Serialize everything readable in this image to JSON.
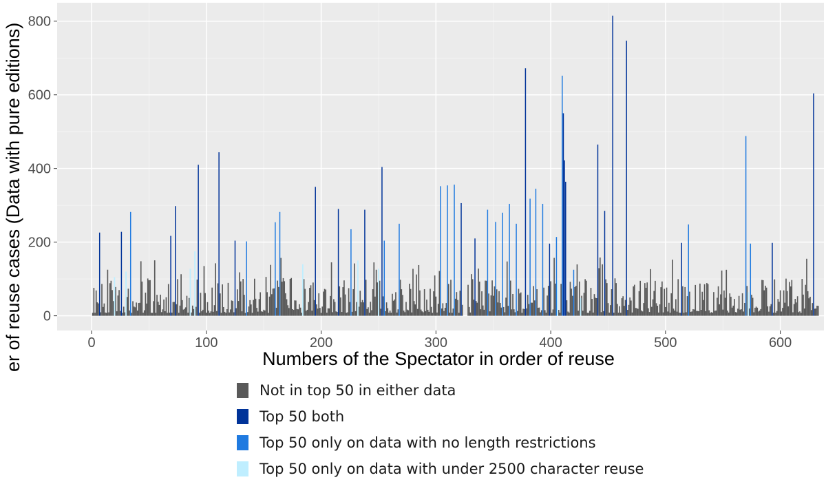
{
  "chart_data": {
    "type": "bar",
    "xlabel": "Numbers of the Spectator in order of reuse",
    "ylabel": "Number of reuse cases (Data with pure editions)",
    "xlim": [
      -30,
      638
    ],
    "ylim": [
      -40,
      850
    ],
    "xticks": [
      0,
      100,
      200,
      300,
      400,
      500,
      600
    ],
    "yticks": [
      0,
      200,
      400,
      600,
      800
    ],
    "background": "#ebebeb",
    "grid": true,
    "legend_position": "bottom",
    "series": [
      {
        "name": "Not in top 50 in either data",
        "color": "#595959"
      },
      {
        "name": "Top 50 both",
        "color": "#003399"
      },
      {
        "name": "Top 50 only on data with no length restrictions",
        "color": "#1f7ae0"
      },
      {
        "name": "Top 50 only on data with under 2500 character reuse",
        "color": "#bfeeff"
      }
    ],
    "highlighted_bars": [
      {
        "x": 7,
        "y": 226,
        "group": 1
      },
      {
        "x": 26,
        "y": 228,
        "group": 1
      },
      {
        "x": 34,
        "y": 282,
        "group": 2
      },
      {
        "x": 69,
        "y": 217,
        "group": 1
      },
      {
        "x": 73,
        "y": 298,
        "group": 1
      },
      {
        "x": 93,
        "y": 410,
        "group": 1
      },
      {
        "x": 111,
        "y": 444,
        "group": 1
      },
      {
        "x": 125,
        "y": 204,
        "group": 1
      },
      {
        "x": 135,
        "y": 202,
        "group": 2
      },
      {
        "x": 160,
        "y": 254,
        "group": 2
      },
      {
        "x": 164,
        "y": 282,
        "group": 2
      },
      {
        "x": 195,
        "y": 350,
        "group": 1
      },
      {
        "x": 215,
        "y": 290,
        "group": 1
      },
      {
        "x": 226,
        "y": 235,
        "group": 2
      },
      {
        "x": 238,
        "y": 288,
        "group": 1
      },
      {
        "x": 253,
        "y": 404,
        "group": 1
      },
      {
        "x": 255,
        "y": 204,
        "group": 2
      },
      {
        "x": 268,
        "y": 250,
        "group": 2
      },
      {
        "x": 304,
        "y": 352,
        "group": 2
      },
      {
        "x": 310,
        "y": 354,
        "group": 2
      },
      {
        "x": 316,
        "y": 356,
        "group": 2
      },
      {
        "x": 322,
        "y": 306,
        "group": 1
      },
      {
        "x": 334,
        "y": 210,
        "group": 1
      },
      {
        "x": 345,
        "y": 288,
        "group": 2
      },
      {
        "x": 352,
        "y": 255,
        "group": 2
      },
      {
        "x": 358,
        "y": 280,
        "group": 2
      },
      {
        "x": 364,
        "y": 304,
        "group": 2
      },
      {
        "x": 370,
        "y": 250,
        "group": 2
      },
      {
        "x": 378,
        "y": 672,
        "group": 1
      },
      {
        "x": 382,
        "y": 318,
        "group": 2
      },
      {
        "x": 387,
        "y": 345,
        "group": 2
      },
      {
        "x": 393,
        "y": 304,
        "group": 2
      },
      {
        "x": 399,
        "y": 196,
        "group": 1
      },
      {
        "x": 405,
        "y": 214,
        "group": 2
      },
      {
        "x": 410,
        "y": 652,
        "group": 2
      },
      {
        "x": 411,
        "y": 550,
        "group": 1
      },
      {
        "x": 412,
        "y": 422,
        "group": 1
      },
      {
        "x": 413,
        "y": 364,
        "group": 1
      },
      {
        "x": 420,
        "y": 125,
        "group": 2
      },
      {
        "x": 441,
        "y": 465,
        "group": 1
      },
      {
        "x": 447,
        "y": 285,
        "group": 1
      },
      {
        "x": 454,
        "y": 815,
        "group": 1
      },
      {
        "x": 466,
        "y": 747,
        "group": 1
      },
      {
        "x": 514,
        "y": 198,
        "group": 1
      },
      {
        "x": 520,
        "y": 248,
        "group": 2
      },
      {
        "x": 570,
        "y": 488,
        "group": 2
      },
      {
        "x": 574,
        "y": 196,
        "group": 2
      },
      {
        "x": 593,
        "y": 198,
        "group": 1
      },
      {
        "x": 629,
        "y": 604,
        "group": 1
      },
      {
        "x": 20,
        "y": 105,
        "group": 3
      },
      {
        "x": 30,
        "y": 120,
        "group": 3
      },
      {
        "x": 86,
        "y": 128,
        "group": 3
      },
      {
        "x": 90,
        "y": 175,
        "group": 3
      },
      {
        "x": 184,
        "y": 140,
        "group": 3
      },
      {
        "x": 232,
        "y": 150,
        "group": 3
      },
      {
        "x": 250,
        "y": 128,
        "group": 3
      },
      {
        "x": 406,
        "y": 96,
        "group": 3
      },
      {
        "x": 426,
        "y": 48,
        "group": 3
      },
      {
        "x": 572,
        "y": 64,
        "group": 3
      }
    ]
  }
}
